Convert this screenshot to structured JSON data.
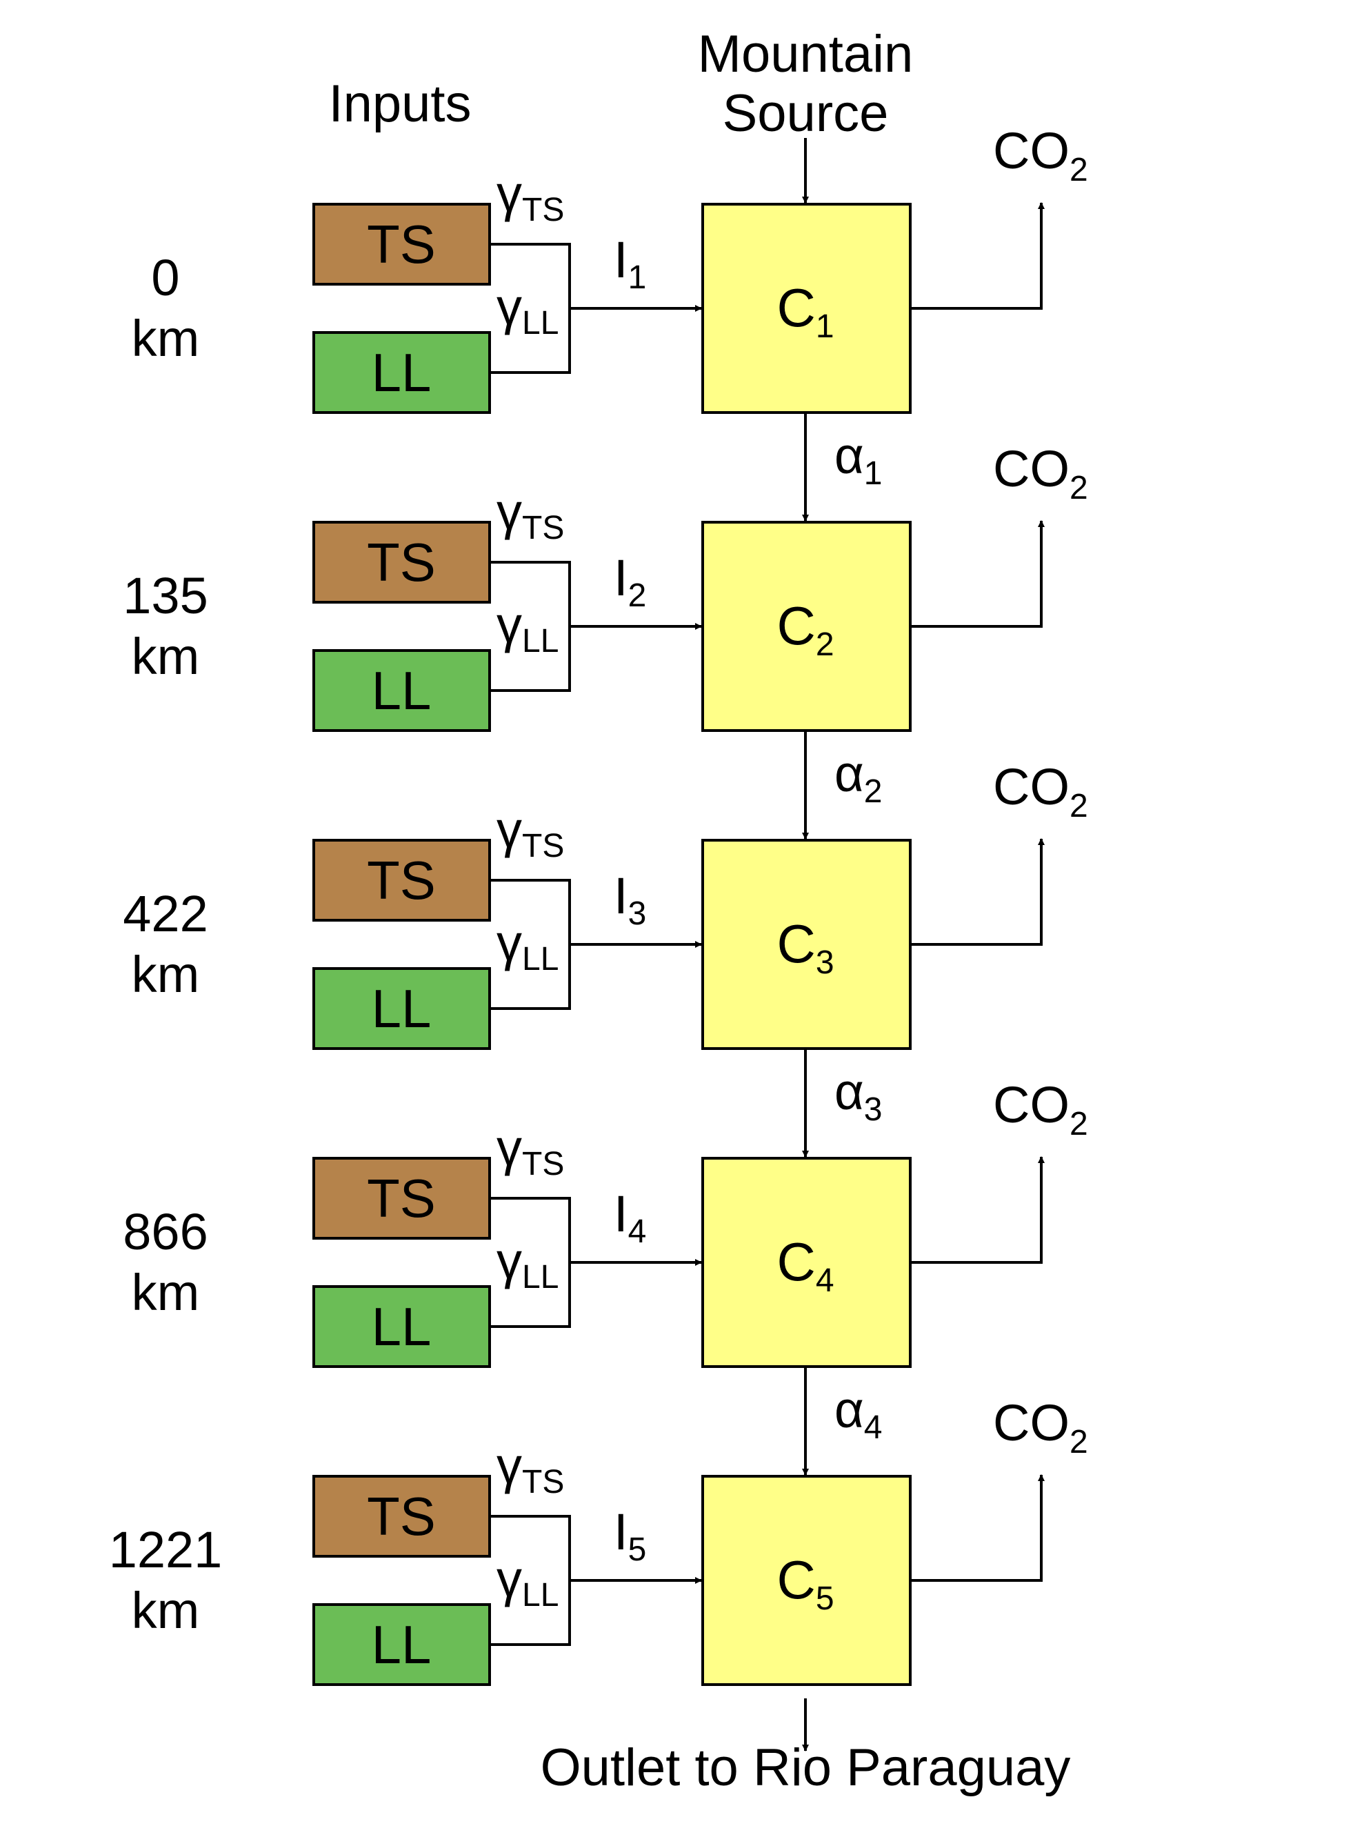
{
  "header": {
    "inputs_label": "Inputs",
    "source_line1": "Mountain",
    "source_line2": "Source"
  },
  "footer": {
    "outlet_label": "Outlet to Rio Paraguay"
  },
  "colors": {
    "ts_fill": "#b5834b",
    "ll_fill": "#6bbd56",
    "compartment_fill": "#ffff88",
    "line": "#000000"
  },
  "labels": {
    "ts": "TS",
    "ll": "LL",
    "gamma": "γ",
    "gamma_ts_sub": "TS",
    "gamma_ll_sub": "LL",
    "input_letter": "I",
    "compartment_letter": "C",
    "alpha": "α",
    "co2_main": "CO",
    "co2_sub": "2",
    "km_unit": "km"
  },
  "segments": [
    {
      "distance": "0",
      "index": "1"
    },
    {
      "distance": "135",
      "index": "2"
    },
    {
      "distance": "422",
      "index": "3"
    },
    {
      "distance": "866",
      "index": "4"
    },
    {
      "distance": "1221",
      "index": "5"
    }
  ],
  "transfers": [
    "1",
    "2",
    "3",
    "4"
  ]
}
